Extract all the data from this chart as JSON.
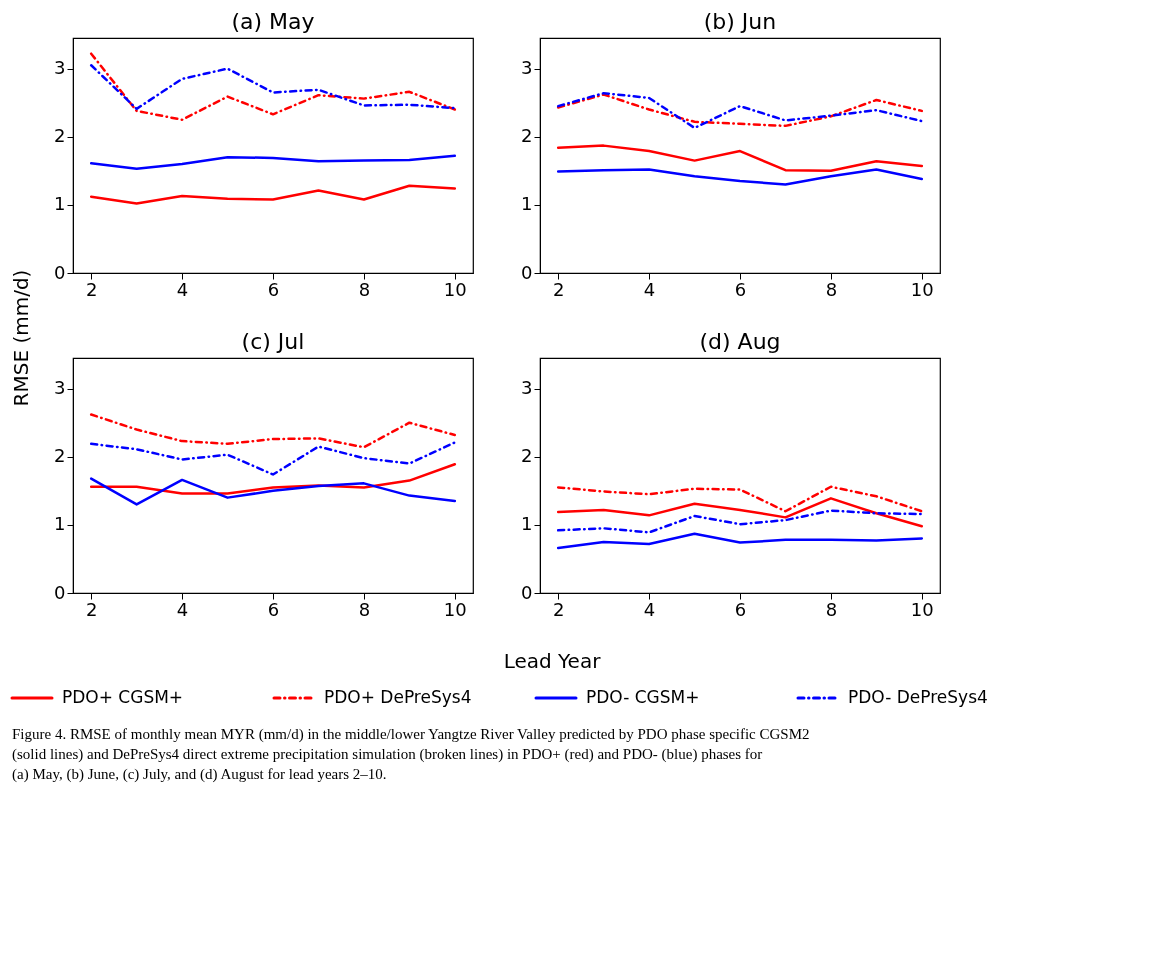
{
  "chart_data": [
    {
      "type": "line",
      "title": "(a) May",
      "ylabel": "RMSE (mm/d)",
      "x": [
        2,
        3,
        4,
        5,
        6,
        7,
        8,
        9,
        10
      ],
      "xlim": [
        1.6,
        10.4
      ],
      "xticks": [
        2,
        4,
        6,
        8,
        10
      ],
      "ylim": [
        0,
        3.45
      ],
      "yticks": [
        0,
        1,
        2,
        3
      ],
      "grid": false,
      "legend": "bottom",
      "marker": "none",
      "annotations": [
        "Figure 4. RMSE of monthly mean MYR (mm/d) in the middle/lower Yangtze River Valley predicted by PDO phase specific CGSM2 (solid lines) and DePreSys4 direct extreme precipitation simulation (broken lines) in PDO+ (red) and PDO- (blue) phases for (a) May, (b) June, (c) July, and (d) August for lead years 2–10."
      ],
      "series": [
        {
          "name": "PDO+ CGSM+",
          "color": "#ff0000",
          "line_style": "solid",
          "values": [
            1.12,
            1.02,
            1.13,
            1.09,
            1.08,
            1.21,
            1.08,
            1.28,
            1.24
          ]
        },
        {
          "name": "PDO+ DePreSys4",
          "color": "#ff0000",
          "line_style": "dashed",
          "values": [
            3.22,
            2.38,
            2.25,
            2.59,
            2.33,
            2.61,
            2.56,
            2.66,
            2.4
          ]
        },
        {
          "name": "PDO- CGSM+",
          "color": "#0000ff",
          "line_style": "solid",
          "values": [
            1.61,
            1.53,
            1.6,
            1.7,
            1.69,
            1.64,
            1.65,
            1.66,
            1.72
          ]
        },
        {
          "name": "PDO- DePreSys4",
          "color": "#0000ff",
          "line_style": "dashed",
          "values": [
            3.05,
            2.41,
            2.85,
            3.0,
            2.65,
            2.69,
            2.46,
            2.47,
            2.42
          ]
        }
      ]
    },
    {
      "type": "line",
      "title": "(b) Jun",
      "x": [
        2,
        3,
        4,
        5,
        6,
        7,
        8,
        9,
        10
      ],
      "xlim": [
        1.6,
        10.4
      ],
      "xticks": [
        2,
        4,
        6,
        8,
        10
      ],
      "ylim": [
        0,
        3.45
      ],
      "yticks": [
        0,
        1,
        2,
        3
      ],
      "grid": false,
      "marker": "none",
      "series": [
        {
          "color": "#ff0000",
          "line_style": "solid",
          "values": [
            1.84,
            1.87,
            1.79,
            1.65,
            1.79,
            1.51,
            1.5,
            1.64,
            1.57
          ]
        },
        {
          "color": "#ff0000",
          "line_style": "dashed",
          "values": [
            2.43,
            2.62,
            2.4,
            2.22,
            2.19,
            2.16,
            2.3,
            2.54,
            2.38
          ]
        },
        {
          "color": "#0000ff",
          "line_style": "solid",
          "values": [
            1.49,
            1.51,
            1.52,
            1.42,
            1.35,
            1.3,
            1.42,
            1.52,
            1.38
          ]
        },
        {
          "color": "#0000ff",
          "line_style": "dashed",
          "values": [
            2.45,
            2.64,
            2.57,
            2.13,
            2.45,
            2.24,
            2.31,
            2.39,
            2.23
          ]
        }
      ]
    },
    {
      "type": "line",
      "title": "(c) Jul",
      "xlabel": "Lead Year",
      "x": [
        2,
        3,
        4,
        5,
        6,
        7,
        8,
        9,
        10
      ],
      "xlim": [
        1.6,
        10.4
      ],
      "xticks": [
        2,
        4,
        6,
        8,
        10
      ],
      "ylim": [
        0,
        3.45
      ],
      "yticks": [
        0,
        1,
        2,
        3
      ],
      "grid": false,
      "marker": "none",
      "series": [
        {
          "color": "#ff0000",
          "line_style": "solid",
          "values": [
            1.56,
            1.56,
            1.46,
            1.46,
            1.55,
            1.58,
            1.55,
            1.65,
            1.89
          ]
        },
        {
          "color": "#ff0000",
          "line_style": "dashed",
          "values": [
            2.62,
            2.4,
            2.23,
            2.19,
            2.26,
            2.27,
            2.14,
            2.5,
            2.32
          ]
        },
        {
          "color": "#0000ff",
          "line_style": "solid",
          "values": [
            1.68,
            1.3,
            1.66,
            1.4,
            1.5,
            1.57,
            1.61,
            1.43,
            1.35
          ]
        },
        {
          "color": "#0000ff",
          "line_style": "dashed",
          "values": [
            2.19,
            2.11,
            1.96,
            2.03,
            1.74,
            2.15,
            1.98,
            1.9,
            2.21
          ]
        }
      ]
    },
    {
      "type": "line",
      "title": "(d) Aug",
      "x": [
        2,
        3,
        4,
        5,
        6,
        7,
        8,
        9,
        10
      ],
      "xlim": [
        1.6,
        10.4
      ],
      "xticks": [
        2,
        4,
        6,
        8,
        10
      ],
      "ylim": [
        0,
        3.45
      ],
      "yticks": [
        0,
        1,
        2,
        3
      ],
      "grid": false,
      "marker": "none",
      "series": [
        {
          "color": "#ff0000",
          "line_style": "solid",
          "values": [
            1.19,
            1.22,
            1.14,
            1.31,
            1.22,
            1.11,
            1.39,
            1.17,
            0.98
          ]
        },
        {
          "color": "#ff0000",
          "line_style": "dashed",
          "values": [
            1.55,
            1.49,
            1.45,
            1.53,
            1.52,
            1.2,
            1.56,
            1.42,
            1.2
          ]
        },
        {
          "color": "#0000ff",
          "line_style": "solid",
          "values": [
            0.66,
            0.75,
            0.72,
            0.87,
            0.74,
            0.78,
            0.78,
            0.77,
            0.8
          ]
        },
        {
          "color": "#0000ff",
          "line_style": "dashed",
          "values": [
            0.92,
            0.95,
            0.89,
            1.13,
            1.01,
            1.07,
            1.21,
            1.17,
            1.16
          ]
        }
      ]
    }
  ]
}
